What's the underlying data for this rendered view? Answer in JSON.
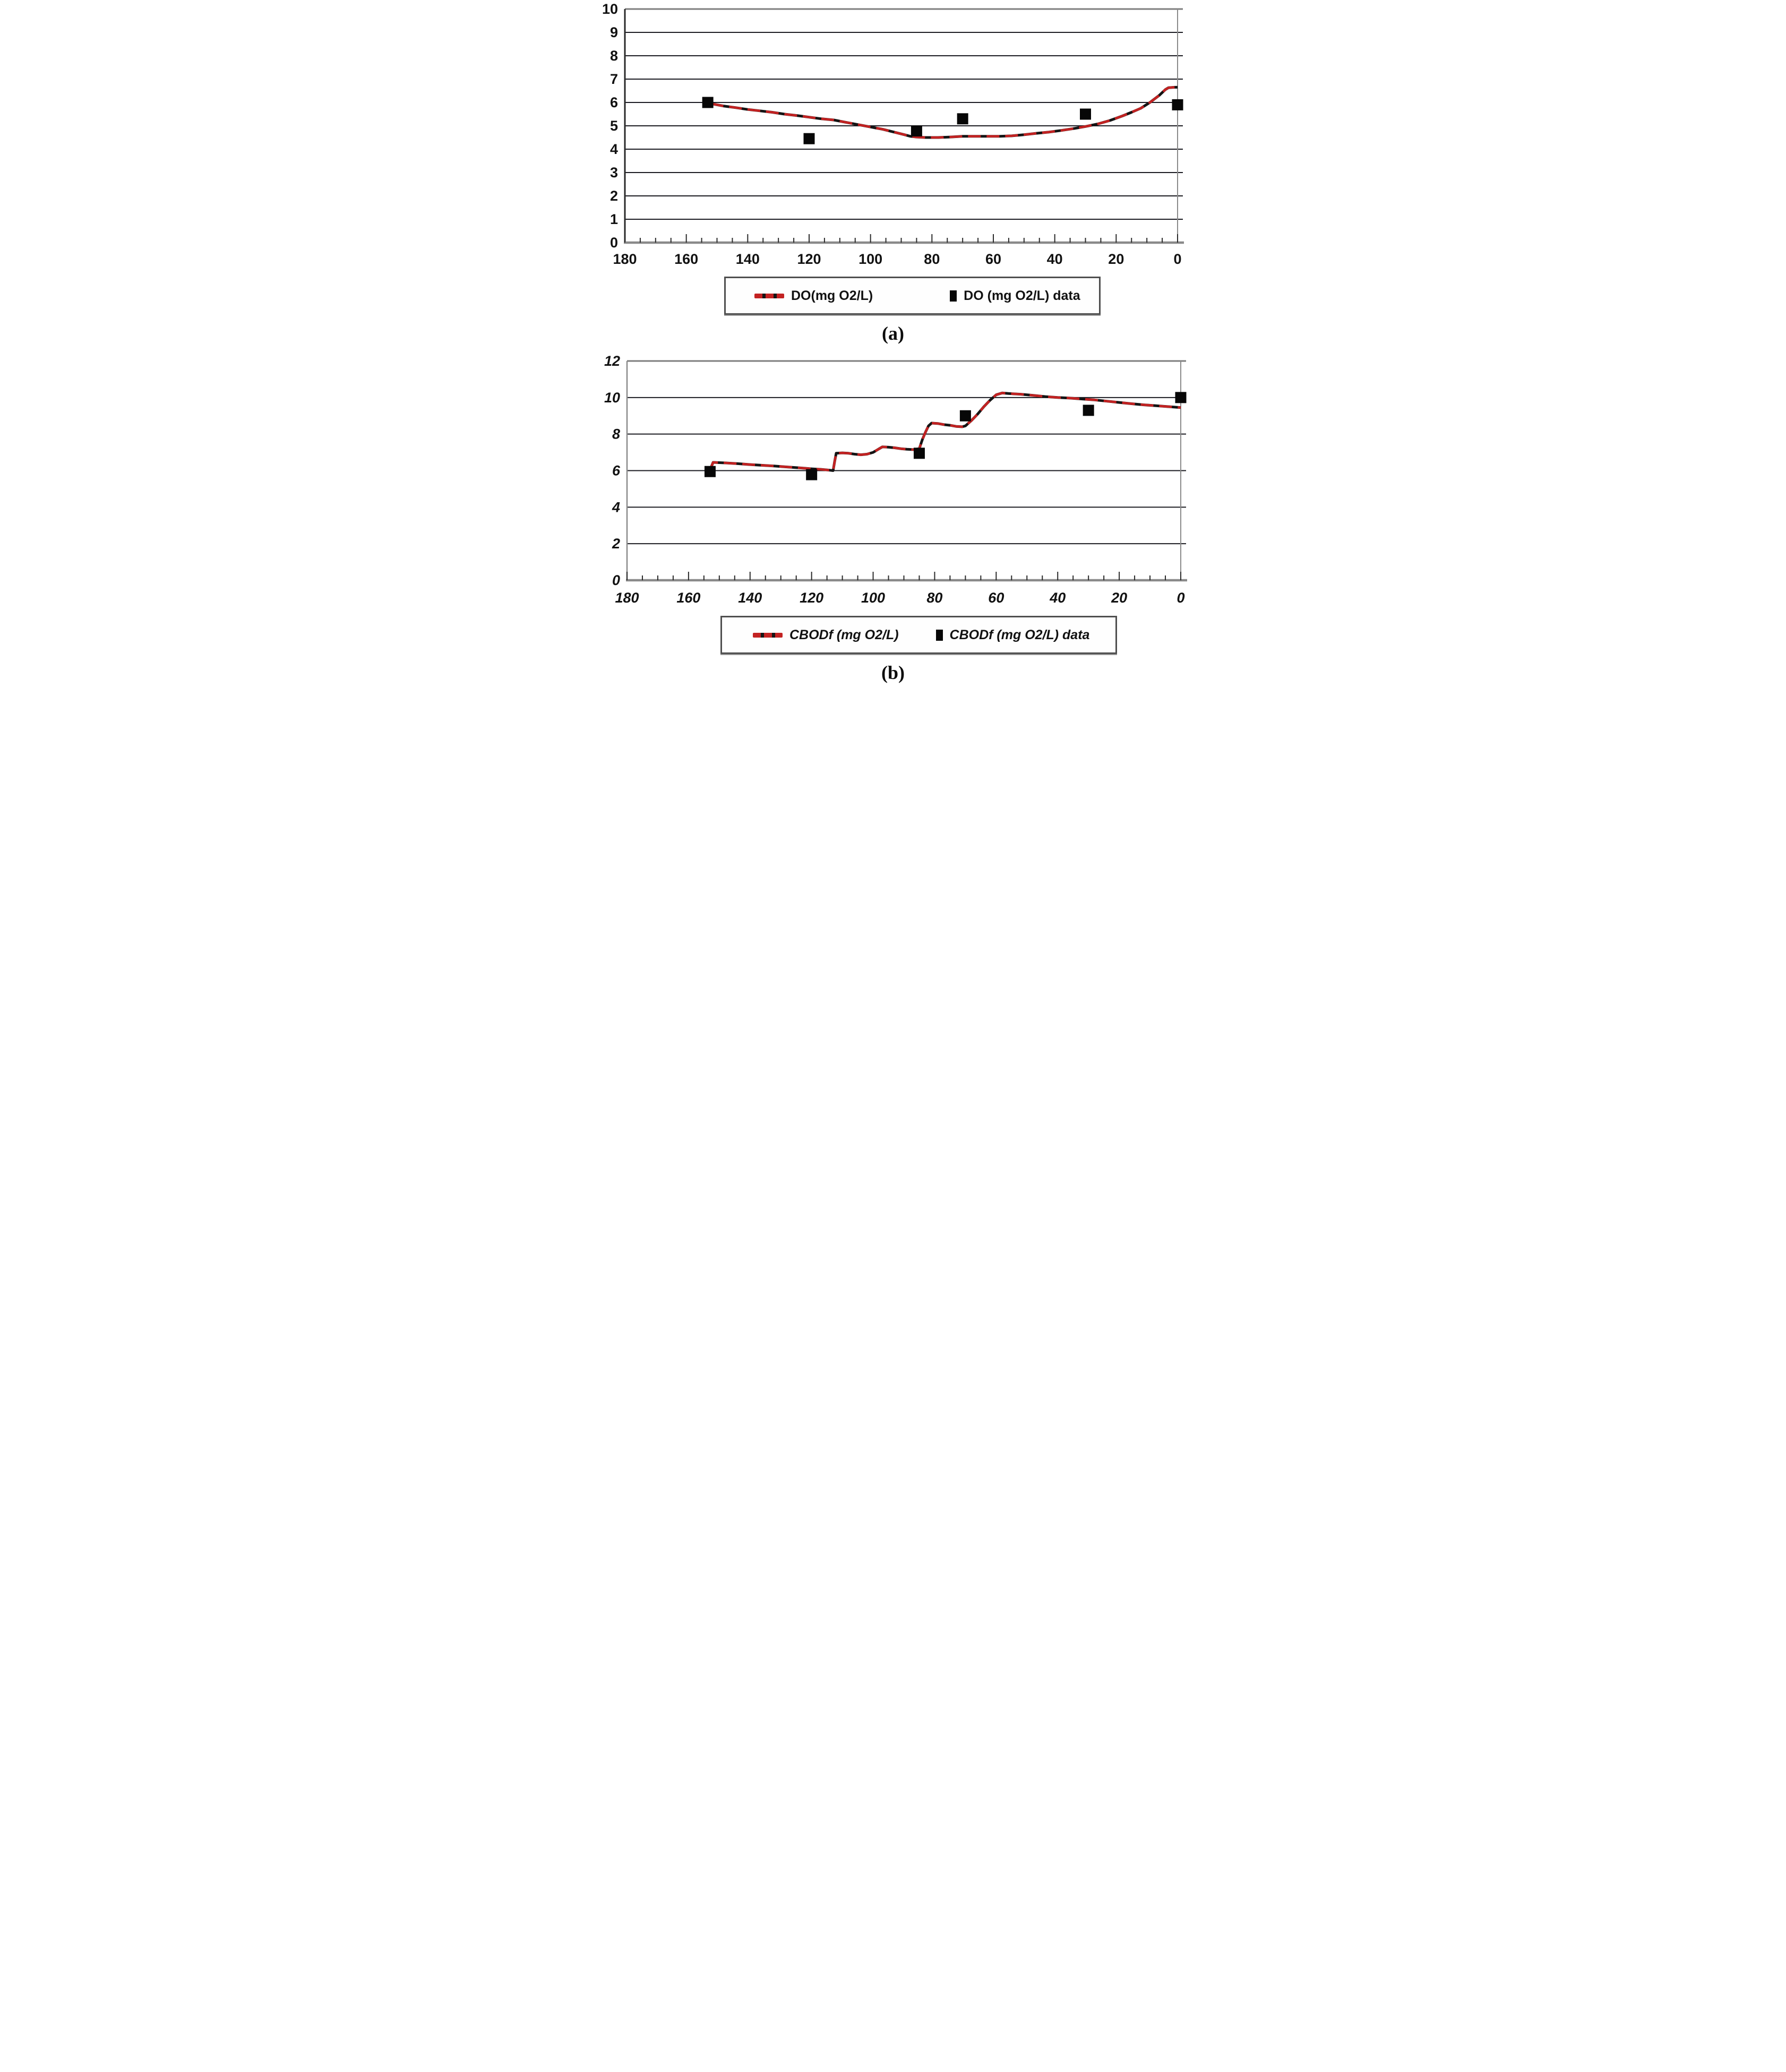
{
  "colors": {
    "curve_red": "#c32222",
    "curve_black": "#141414",
    "marker_black": "#070707",
    "gridline": "#1b1b22",
    "border_grey": "#7d7d7d",
    "axis_grey": "#8a8a8a",
    "tick_color": "#2a2a2a",
    "legend_border": "#4f4f4f"
  },
  "chart_data": [
    {
      "id": "a",
      "type": "line",
      "caption": "(a)",
      "x_axis": {
        "min": 0,
        "max": 180,
        "reversed": true,
        "major_tick_step": 20,
        "minor_tick_step": 5,
        "tick_labels": [
          180,
          160,
          140,
          120,
          100,
          80,
          60,
          40,
          20,
          0
        ]
      },
      "y_axis": {
        "min": 0,
        "max": 10,
        "tick_step": 1,
        "tick_labels": [
          10,
          9,
          8,
          7,
          6,
          5,
          4,
          3,
          2,
          1,
          0
        ]
      },
      "grid": true,
      "legend": [
        "DO(mg O2/L)",
        "DO (mg O2/L) data"
      ],
      "series": [
        {
          "name": "DO(mg O2/L)",
          "kind": "line",
          "points": [
            [
              152,
              5.95
            ],
            [
              148,
              5.85
            ],
            [
              144,
              5.78
            ],
            [
              140,
              5.7
            ],
            [
              136,
              5.64
            ],
            [
              132,
              5.58
            ],
            [
              128,
              5.5
            ],
            [
              124,
              5.44
            ],
            [
              120,
              5.37
            ],
            [
              116,
              5.3
            ],
            [
              112,
              5.25
            ],
            [
              108,
              5.15
            ],
            [
              104,
              5.05
            ],
            [
              100,
              4.95
            ],
            [
              96,
              4.85
            ],
            [
              92,
              4.72
            ],
            [
              89,
              4.62
            ],
            [
              87,
              4.55
            ],
            [
              85,
              4.52
            ],
            [
              82,
              4.5
            ],
            [
              78,
              4.5
            ],
            [
              74,
              4.52
            ],
            [
              70,
              4.55
            ],
            [
              66,
              4.55
            ],
            [
              62,
              4.55
            ],
            [
              58,
              4.55
            ],
            [
              54,
              4.57
            ],
            [
              50,
              4.62
            ],
            [
              46,
              4.68
            ],
            [
              42,
              4.73
            ],
            [
              38,
              4.8
            ],
            [
              34,
              4.88
            ],
            [
              30,
              4.97
            ],
            [
              26,
              5.08
            ],
            [
              22,
              5.23
            ],
            [
              18,
              5.42
            ],
            [
              15,
              5.58
            ],
            [
              12,
              5.75
            ],
            [
              9,
              6.0
            ],
            [
              6,
              6.3
            ],
            [
              4,
              6.55
            ],
            [
              3,
              6.63
            ],
            [
              1,
              6.65
            ],
            [
              0,
              6.65
            ]
          ]
        },
        {
          "name": "DO (mg O2/L) data",
          "kind": "scatter",
          "points": [
            [
              153,
              6.0
            ],
            [
              120,
              4.45
            ],
            [
              85,
              4.78
            ],
            [
              70,
              5.3
            ],
            [
              30,
              5.5
            ],
            [
              0,
              5.9
            ]
          ]
        }
      ]
    },
    {
      "id": "b",
      "type": "line",
      "caption": "(b)",
      "x_axis": {
        "min": 0,
        "max": 180,
        "reversed": true,
        "major_tick_step": 20,
        "minor_tick_step": 5,
        "tick_labels": [
          180,
          160,
          140,
          120,
          100,
          80,
          60,
          40,
          20,
          0
        ]
      },
      "y_axis": {
        "min": 0,
        "max": 12,
        "tick_step": 2,
        "tick_labels": [
          12,
          10,
          8,
          6,
          4,
          2,
          0
        ]
      },
      "grid": true,
      "legend": [
        "CBODf (mg O2/L)",
        "CBODf (mg O2/L) data"
      ],
      "series": [
        {
          "name": "CBODf (mg O2/L)",
          "kind": "line",
          "points": [
            [
              153,
              6.05
            ],
            [
              152,
              6.45
            ],
            [
              148,
              6.42
            ],
            [
              144,
              6.38
            ],
            [
              140,
              6.33
            ],
            [
              136,
              6.29
            ],
            [
              132,
              6.25
            ],
            [
              128,
              6.2
            ],
            [
              124,
              6.15
            ],
            [
              120,
              6.1
            ],
            [
              117,
              6.07
            ],
            [
              114,
              6.02
            ],
            [
              113,
              6.0
            ],
            [
              112.5,
              6.5
            ],
            [
              112,
              6.95
            ],
            [
              110,
              6.97
            ],
            [
              108,
              6.95
            ],
            [
              106,
              6.9
            ],
            [
              104,
              6.87
            ],
            [
              102,
              6.9
            ],
            [
              100,
              7.0
            ],
            [
              98,
              7.2
            ],
            [
              97,
              7.3
            ],
            [
              95,
              7.28
            ],
            [
              93,
              7.25
            ],
            [
              91,
              7.2
            ],
            [
              89,
              7.17
            ],
            [
              87,
              7.15
            ],
            [
              85,
              7.2
            ],
            [
              84,
              7.7
            ],
            [
              83,
              8.1
            ],
            [
              82,
              8.45
            ],
            [
              81,
              8.6
            ],
            [
              79,
              8.58
            ],
            [
              77,
              8.52
            ],
            [
              75,
              8.48
            ],
            [
              73,
              8.42
            ],
            [
              71,
              8.4
            ],
            [
              70,
              8.45
            ],
            [
              68,
              8.75
            ],
            [
              66,
              9.1
            ],
            [
              64,
              9.5
            ],
            [
              62,
              9.85
            ],
            [
              60,
              10.15
            ],
            [
              58,
              10.25
            ],
            [
              56,
              10.22
            ],
            [
              52,
              10.18
            ],
            [
              48,
              10.12
            ],
            [
              44,
              10.05
            ],
            [
              40,
              10.0
            ],
            [
              36,
              9.97
            ],
            [
              32,
              9.92
            ],
            [
              28,
              9.87
            ],
            [
              24,
              9.8
            ],
            [
              20,
              9.73
            ],
            [
              16,
              9.66
            ],
            [
              12,
              9.6
            ],
            [
              8,
              9.55
            ],
            [
              4,
              9.5
            ],
            [
              0,
              9.45
            ]
          ]
        },
        {
          "name": "CBODf (mg O2/L) data",
          "kind": "scatter",
          "points": [
            [
              153,
              5.95
            ],
            [
              120,
              5.78
            ],
            [
              85,
              6.95
            ],
            [
              70,
              9.0
            ],
            [
              30,
              9.3
            ],
            [
              0,
              10.0
            ]
          ]
        }
      ]
    }
  ]
}
